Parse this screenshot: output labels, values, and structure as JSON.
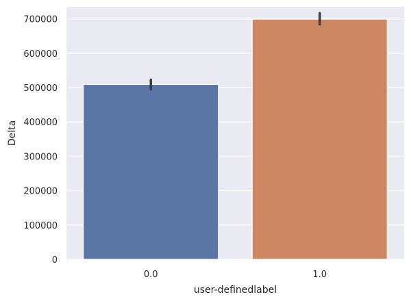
{
  "chart_data": {
    "type": "bar",
    "categories": [
      "0.0",
      "1.0"
    ],
    "values": [
      509000,
      699000
    ],
    "error_bars": [
      [
        495000,
        523000
      ],
      [
        684000,
        716000
      ]
    ],
    "colors": [
      "#5975a4",
      "#cc8963"
    ],
    "error_color": "#3d3d3d",
    "background": "#eaeaf2",
    "grid": true,
    "xlabel": "user-definedlabel",
    "ylabel": "Delta",
    "ylim": [
      0,
      735000
    ],
    "yticks": [
      0,
      100000,
      200000,
      300000,
      400000,
      500000,
      600000,
      700000
    ],
    "ytick_labels": [
      "0",
      "100000",
      "200000",
      "300000",
      "400000",
      "500000",
      "600000",
      "700000"
    ]
  }
}
